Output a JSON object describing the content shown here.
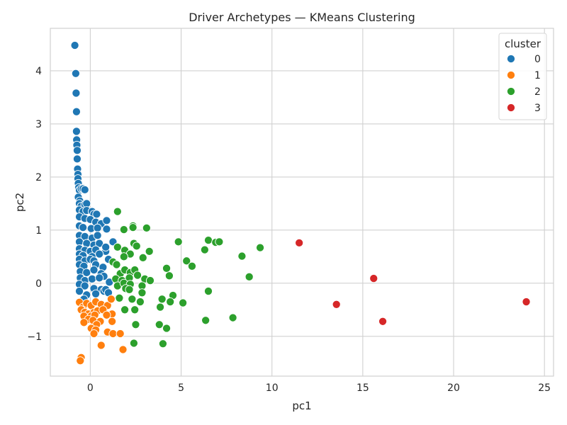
{
  "chart_data": {
    "type": "scatter",
    "title": "Driver Archetypes — KMeans Clustering",
    "xlabel": "pc1",
    "ylabel": "pc2",
    "xlim": [
      -2.2,
      25.5
    ],
    "ylim": [
      -1.75,
      4.8
    ],
    "xticks": [
      0,
      5,
      10,
      15,
      20,
      25
    ],
    "yticks": [
      -1,
      0,
      1,
      2,
      3,
      4
    ],
    "xtick_labels": [
      "0",
      "5",
      "10",
      "15",
      "20",
      "25"
    ],
    "ytick_labels": [
      "−1",
      "0",
      "1",
      "2",
      "3",
      "4"
    ],
    "grid": true,
    "legend": {
      "title": "cluster",
      "position": "top-right"
    },
    "series": [
      {
        "name": "0",
        "color": "#1f77b4",
        "points": [
          [
            -0.85,
            4.48
          ],
          [
            -0.8,
            3.95
          ],
          [
            -0.78,
            3.58
          ],
          [
            -0.76,
            3.23
          ],
          [
            -0.76,
            2.86
          ],
          [
            -0.75,
            2.7
          ],
          [
            -0.74,
            2.6
          ],
          [
            -0.72,
            2.5
          ],
          [
            -0.72,
            2.34
          ],
          [
            -0.7,
            2.15
          ],
          [
            -0.68,
            2.05
          ],
          [
            -0.68,
            1.97
          ],
          [
            -0.66,
            1.88
          ],
          [
            -0.64,
            1.8
          ],
          [
            -0.6,
            1.75
          ],
          [
            -0.5,
            1.78
          ],
          [
            -0.4,
            1.78
          ],
          [
            -0.3,
            1.76
          ],
          [
            -0.66,
            1.62
          ],
          [
            -0.58,
            1.55
          ],
          [
            -0.6,
            1.5
          ],
          [
            -0.5,
            1.45
          ],
          [
            -0.3,
            1.48
          ],
          [
            -0.2,
            1.5
          ],
          [
            -0.6,
            1.38
          ],
          [
            -0.4,
            1.35
          ],
          [
            -0.2,
            1.37
          ],
          [
            0.1,
            1.35
          ],
          [
            0.2,
            1.3
          ],
          [
            0.35,
            1.3
          ],
          [
            -0.6,
            1.25
          ],
          [
            -0.3,
            1.22
          ],
          [
            0.0,
            1.2
          ],
          [
            0.3,
            1.15
          ],
          [
            0.6,
            1.12
          ],
          [
            0.9,
            1.18
          ],
          [
            -0.6,
            1.08
          ],
          [
            -0.4,
            1.05
          ],
          [
            0.05,
            1.03
          ],
          [
            0.4,
            1.04
          ],
          [
            0.9,
            1.02
          ],
          [
            -0.6,
            0.9
          ],
          [
            -0.3,
            0.88
          ],
          [
            0.1,
            0.85
          ],
          [
            0.4,
            0.9
          ],
          [
            -0.6,
            0.78
          ],
          [
            -0.2,
            0.75
          ],
          [
            0.2,
            0.72
          ],
          [
            0.5,
            0.75
          ],
          [
            1.25,
            0.78
          ],
          [
            -0.6,
            0.65
          ],
          [
            -0.3,
            0.62
          ],
          [
            0.0,
            0.6
          ],
          [
            0.3,
            0.63
          ],
          [
            0.85,
            0.6
          ],
          [
            0.85,
            0.68
          ],
          [
            -0.6,
            0.55
          ],
          [
            -0.4,
            0.52
          ],
          [
            0.1,
            0.5
          ],
          [
            0.5,
            0.55
          ],
          [
            -0.6,
            0.45
          ],
          [
            -0.3,
            0.42
          ],
          [
            0.0,
            0.45
          ],
          [
            0.2,
            0.42
          ],
          [
            1.0,
            0.45
          ],
          [
            -0.6,
            0.35
          ],
          [
            -0.35,
            0.32
          ],
          [
            0.3,
            0.35
          ],
          [
            0.7,
            0.3
          ],
          [
            -0.55,
            0.22
          ],
          [
            -0.2,
            0.2
          ],
          [
            0.2,
            0.25
          ],
          [
            0.6,
            0.18
          ],
          [
            0.75,
            0.13
          ],
          [
            -0.55,
            0.1
          ],
          [
            -0.3,
            0.05
          ],
          [
            0.1,
            0.08
          ],
          [
            0.5,
            0.1
          ],
          [
            1.05,
            0.02
          ],
          [
            -0.6,
            -0.02
          ],
          [
            -0.3,
            -0.05
          ],
          [
            0.2,
            -0.1
          ],
          [
            0.6,
            -0.12
          ],
          [
            0.75,
            -0.15
          ],
          [
            -0.6,
            -0.15
          ],
          [
            -0.2,
            -0.22
          ],
          [
            0.3,
            -0.2
          ],
          [
            0.85,
            -0.12
          ],
          [
            1.0,
            -0.18
          ],
          [
            -0.35,
            -0.3
          ]
        ]
      },
      {
        "name": "1",
        "color": "#ff7f0e",
        "points": [
          [
            -0.6,
            -0.36
          ],
          [
            -0.4,
            -0.45
          ],
          [
            -0.2,
            -0.38
          ],
          [
            0.05,
            -0.42
          ],
          [
            0.3,
            -0.35
          ],
          [
            0.6,
            -0.4
          ],
          [
            0.95,
            -0.42
          ],
          [
            1.15,
            -0.3
          ],
          [
            -0.5,
            -0.5
          ],
          [
            -0.3,
            -0.55
          ],
          [
            -0.1,
            -0.58
          ],
          [
            0.2,
            -0.55
          ],
          [
            0.4,
            -0.52
          ],
          [
            0.7,
            -0.5
          ],
          [
            1.2,
            -0.58
          ],
          [
            -0.35,
            -0.62
          ],
          [
            0.05,
            -0.62
          ],
          [
            0.25,
            -0.6
          ],
          [
            0.9,
            -0.6
          ],
          [
            -0.1,
            -0.68
          ],
          [
            0.15,
            -0.7
          ],
          [
            0.55,
            -0.72
          ],
          [
            1.2,
            -0.72
          ],
          [
            -0.35,
            -0.74
          ],
          [
            0.35,
            -0.78
          ],
          [
            0.05,
            -0.85
          ],
          [
            0.3,
            -0.88
          ],
          [
            0.95,
            -0.92
          ],
          [
            0.2,
            -0.95
          ],
          [
            1.25,
            -0.95
          ],
          [
            1.65,
            -0.95
          ],
          [
            0.6,
            -1.17
          ],
          [
            1.8,
            -1.25
          ],
          [
            -0.5,
            -1.4
          ],
          [
            -0.55,
            -1.46
          ]
        ]
      },
      {
        "name": "2",
        "color": "#2ca02c",
        "points": [
          [
            1.5,
            1.35
          ],
          [
            1.85,
            1.01
          ],
          [
            2.35,
            1.08
          ],
          [
            2.35,
            1.05
          ],
          [
            3.1,
            1.04
          ],
          [
            4.85,
            0.78
          ],
          [
            6.5,
            0.81
          ],
          [
            6.9,
            0.77
          ],
          [
            7.1,
            0.78
          ],
          [
            2.4,
            0.75
          ],
          [
            2.55,
            0.7
          ],
          [
            1.5,
            0.68
          ],
          [
            1.9,
            0.62
          ],
          [
            2.2,
            0.55
          ],
          [
            3.25,
            0.6
          ],
          [
            6.3,
            0.63
          ],
          [
            8.35,
            0.51
          ],
          [
            9.35,
            0.67
          ],
          [
            1.25,
            0.4
          ],
          [
            1.45,
            0.35
          ],
          [
            1.85,
            0.5
          ],
          [
            2.9,
            0.48
          ],
          [
            5.3,
            0.42
          ],
          [
            5.6,
            0.32
          ],
          [
            1.65,
            0.18
          ],
          [
            1.9,
            0.25
          ],
          [
            2.2,
            0.2
          ],
          [
            2.45,
            0.25
          ],
          [
            4.2,
            0.28
          ],
          [
            4.35,
            0.14
          ],
          [
            8.75,
            0.12
          ],
          [
            1.4,
            0.08
          ],
          [
            1.75,
            0.05
          ],
          [
            2.15,
            0.1
          ],
          [
            2.6,
            0.15
          ],
          [
            3.0,
            0.08
          ],
          [
            3.3,
            0.05
          ],
          [
            1.5,
            -0.05
          ],
          [
            1.85,
            0.0
          ],
          [
            2.2,
            -0.02
          ],
          [
            2.85,
            -0.05
          ],
          [
            1.95,
            -0.1
          ],
          [
            2.15,
            -0.12
          ],
          [
            2.85,
            -0.18
          ],
          [
            6.5,
            -0.15
          ],
          [
            1.6,
            -0.28
          ],
          [
            2.3,
            -0.3
          ],
          [
            2.75,
            -0.35
          ],
          [
            3.95,
            -0.3
          ],
          [
            4.55,
            -0.23
          ],
          [
            5.1,
            -0.37
          ],
          [
            4.4,
            -0.35
          ],
          [
            1.9,
            -0.5
          ],
          [
            2.45,
            -0.5
          ],
          [
            3.85,
            -0.45
          ],
          [
            2.5,
            -0.78
          ],
          [
            3.8,
            -0.78
          ],
          [
            4.2,
            -0.85
          ],
          [
            6.35,
            -0.7
          ],
          [
            7.85,
            -0.65
          ],
          [
            2.4,
            -1.13
          ],
          [
            4.0,
            -1.14
          ]
        ]
      },
      {
        "name": "3",
        "color": "#d62728",
        "points": [
          [
            11.5,
            0.76
          ],
          [
            15.6,
            0.09
          ],
          [
            13.55,
            -0.4
          ],
          [
            16.1,
            -0.72
          ],
          [
            24.0,
            -0.35
          ]
        ]
      }
    ]
  }
}
